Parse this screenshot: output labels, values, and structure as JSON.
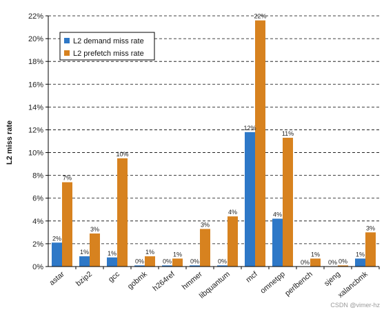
{
  "chart_data": {
    "type": "bar",
    "ylabel": "L2 miss rate",
    "xlabel": "",
    "ylim": [
      0,
      22
    ],
    "yticks": [
      "0%",
      "2%",
      "4%",
      "6%",
      "8%",
      "10%",
      "12%",
      "14%",
      "16%",
      "18%",
      "20%",
      "22%"
    ],
    "grid": true,
    "legend_placement": "top-left",
    "categories": [
      "astar",
      "bzip2",
      "gcc",
      "gobmk",
      "h264ref",
      "hmmer",
      "libquantum",
      "mcf",
      "omnetpp",
      "perlbench",
      "sjeng",
      "xalancbmk"
    ],
    "series": [
      {
        "name": "L2 demand miss rate",
        "color": "#2e78c7",
        "values": [
          2.1,
          0.9,
          0.8,
          0.1,
          0.1,
          0.1,
          0.1,
          11.8,
          4.2,
          0.0,
          0.0,
          0.7
        ],
        "labels": [
          "2%",
          "1%",
          "1%",
          "0%",
          "0%",
          "0%",
          "0%",
          "12%",
          "4%",
          "0%",
          "0%",
          "1%"
        ]
      },
      {
        "name": "L2 prefetch miss rate",
        "color": "#d7821f",
        "values": [
          7.4,
          2.9,
          9.5,
          0.9,
          0.7,
          3.3,
          4.4,
          21.6,
          11.3,
          0.7,
          0.1,
          3.0
        ],
        "labels": [
          "7%",
          "3%",
          "10%",
          "1%",
          "1%",
          "3%",
          "4%",
          "22%",
          "11%",
          "1%",
          "0%",
          "3%"
        ]
      }
    ]
  },
  "watermark": "CSDN @vimer-hz"
}
